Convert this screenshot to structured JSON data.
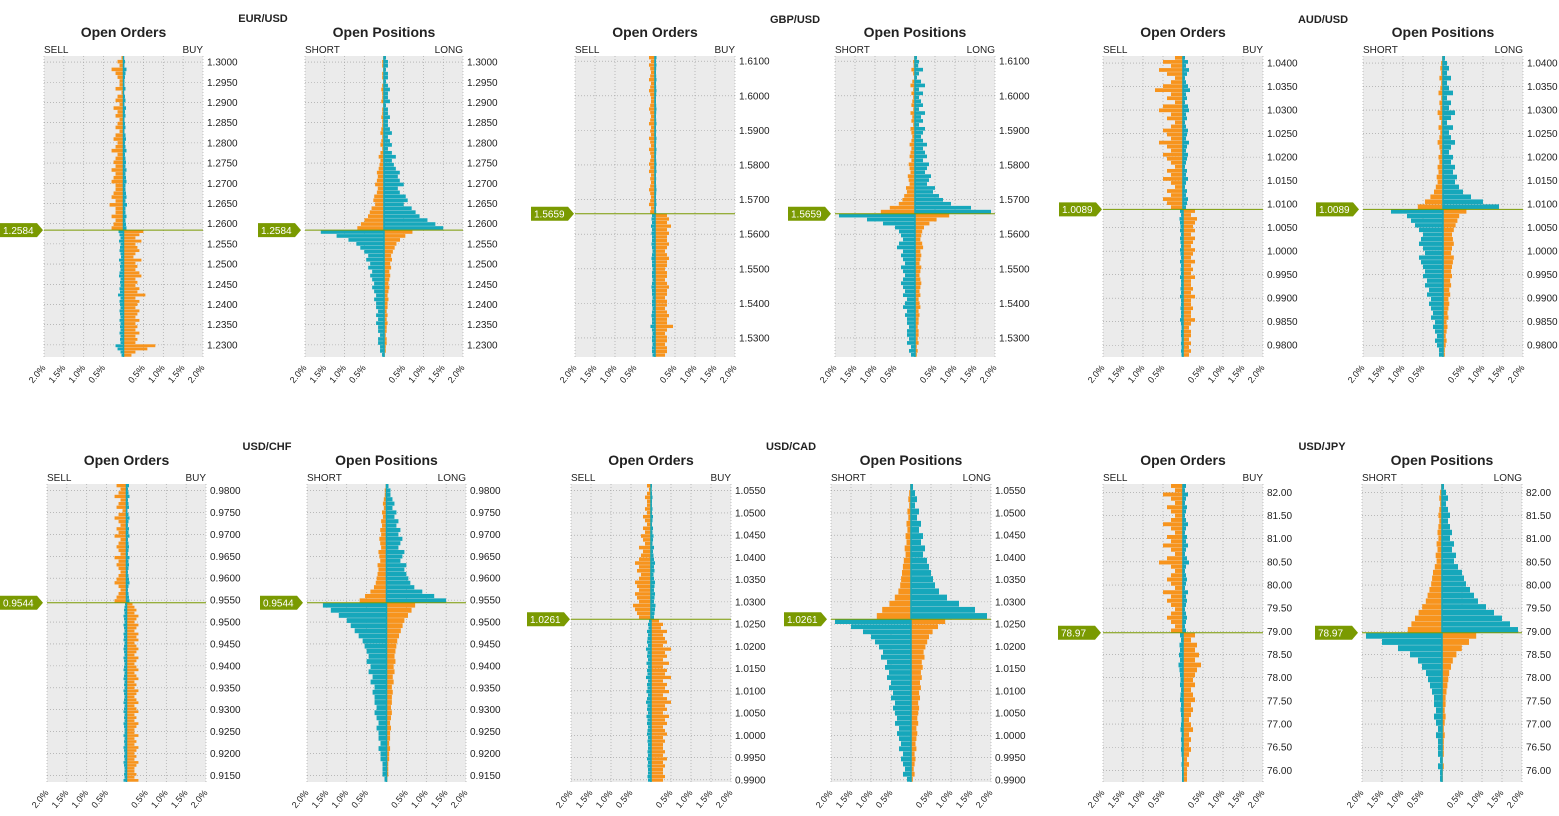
{
  "labels": {
    "orders_title": "Open Orders",
    "positions_title": "Open Positions",
    "sell": "SELL",
    "buy": "BUY",
    "short": "SHORT",
    "long": "LONG",
    "x_ticks": [
      "2.0%",
      "1.5%",
      "1.0%",
      "0.5%",
      "",
      "0.5%",
      "1.0%",
      "1.5%",
      "2.0%"
    ]
  },
  "colors": {
    "orange": "#F7941D",
    "teal": "#16A7BB",
    "price_line": "#7A9A01",
    "plot_bg": "#EBEBEB",
    "grid": "#9A9A9A"
  },
  "chart_data": [
    {
      "type": "bar",
      "pair": "EUR/USD",
      "current_price": "1.2584",
      "price_value": 1.2584,
      "y_range": [
        1.227,
        1.3015
      ],
      "y_ticks": [
        "1.3000",
        "1.2950",
        "1.2900",
        "1.2850",
        "1.2800",
        "1.2750",
        "1.2700",
        "1.2650",
        "1.2600",
        "1.2550",
        "1.2500",
        "1.2450",
        "1.2400",
        "1.2350",
        "1.2300"
      ],
      "orders_profile": {
        "above": [
          0.05,
          0.15,
          0.1,
          0.3,
          0.2,
          0.15,
          0.1,
          0.1,
          0.2,
          0.05,
          0.15,
          0.2,
          0.1,
          0.25,
          0.15,
          0.2,
          0.1,
          0.15,
          0.2,
          0.1,
          0.2,
          0.25,
          0.15,
          0.2,
          0.3,
          0.15,
          0.2,
          0.25,
          0.2,
          0.3,
          0.2,
          0.25,
          0.3,
          0.2,
          0.2,
          0.25,
          0.3,
          0.2,
          0.35,
          0.2,
          0.2,
          0.3,
          0.2,
          0.25,
          0.3
        ],
        "below": [
          0.5,
          0.4,
          0.3,
          0.45,
          0.3,
          0.35,
          0.4,
          0.3,
          0.25,
          0.45,
          0.3,
          0.35,
          0.3,
          0.4,
          0.45,
          0.3,
          0.35,
          0.3,
          0.4,
          0.35,
          0.55,
          0.3,
          0.4,
          0.35,
          0.3,
          0.4,
          0.35,
          0.3,
          0.4,
          0.3,
          0.35,
          0.3,
          0.4,
          0.3,
          0.35,
          0.3,
          0.8,
          0.6,
          0.3,
          0.2
        ],
        "max": 0.9
      },
      "positions_profile": {
        "above": [
          0.05,
          0.1,
          0.1,
          0.05,
          0.1,
          0.1,
          0.05,
          0.1,
          0.15,
          0.1,
          0.1,
          0.15,
          0.05,
          0.1,
          0.1,
          0.15,
          0.1,
          0.1,
          0.15,
          0.2,
          0.1,
          0.15,
          0.2,
          0.1,
          0.2,
          0.3,
          0.2,
          0.25,
          0.3,
          0.4,
          0.35,
          0.4,
          0.5,
          0.35,
          0.4,
          0.55,
          0.6,
          0.5,
          0.7,
          0.8,
          0.9,
          1.1,
          1.3,
          1.5
        ],
        "below": [
          1.6,
          1.2,
          0.9,
          0.7,
          0.6,
          0.5,
          0.4,
          0.45,
          0.35,
          0.4,
          0.3,
          0.35,
          0.3,
          0.25,
          0.3,
          0.25,
          0.2,
          0.25,
          0.2,
          0.2,
          0.15,
          0.2,
          0.15,
          0.2,
          0.15,
          0.15,
          0.1,
          0.15,
          0.15,
          0.1,
          0.1,
          0.05
        ],
        "max": 1.8
      }
    },
    {
      "type": "bar",
      "pair": "GBP/USD",
      "current_price": "1.5659",
      "price_value": 1.5659,
      "y_range": [
        1.5245,
        1.6115
      ],
      "y_ticks": [
        "1.6100",
        "1.6000",
        "1.5900",
        "1.5800",
        "1.5700",
        "1.5600",
        "1.5500",
        "1.5400",
        "1.5300"
      ],
      "orders_profile": {
        "above": [
          0.15,
          0.1,
          0.15,
          0.12,
          0.1,
          0.12,
          0.15,
          0.1,
          0.12,
          0.15,
          0.12,
          0.1,
          0.1,
          0.12,
          0.15,
          0.12,
          0.1,
          0.12,
          0.15,
          0.1,
          0.12,
          0.1,
          0.15,
          0.12,
          0.1,
          0.15,
          0.12,
          0.1,
          0.12,
          0.15,
          0.12,
          0.15,
          0.1,
          0.12,
          0.1,
          0.12,
          0.15,
          0.12,
          0.1,
          0.12,
          0.15,
          0.1,
          0.12
        ],
        "below": [
          0.3,
          0.35,
          0.3,
          0.4,
          0.3,
          0.35,
          0.3,
          0.3,
          0.35,
          0.3,
          0.25,
          0.3,
          0.35,
          0.3,
          0.3,
          0.25,
          0.3,
          0.3,
          0.25,
          0.3,
          0.35,
          0.3,
          0.3,
          0.25,
          0.3,
          0.3,
          0.25,
          0.3,
          0.35,
          0.3,
          0.3,
          0.45,
          0.3,
          0.25,
          0.3,
          0.3,
          0.25,
          0.3,
          0.3,
          0.25
        ],
        "max": 0.5
      },
      "positions_profile": {
        "above": [
          0.05,
          0.1,
          0.08,
          0.2,
          0.1,
          0.05,
          0.15,
          0.25,
          0.1,
          0.2,
          0.1,
          0.15,
          0.2,
          0.1,
          0.25,
          0.15,
          0.2,
          0.1,
          0.25,
          0.2,
          0.15,
          0.2,
          0.3,
          0.2,
          0.25,
          0.3,
          0.2,
          0.35,
          0.3,
          0.25,
          0.4,
          0.35,
          0.3,
          0.5,
          0.45,
          0.6,
          0.7,
          0.9,
          1.4,
          1.9
        ],
        "below": [
          1.9,
          1.2,
          0.8,
          0.5,
          0.4,
          0.35,
          0.3,
          0.4,
          0.45,
          0.3,
          0.35,
          0.3,
          0.25,
          0.35,
          0.3,
          0.25,
          0.3,
          0.35,
          0.3,
          0.25,
          0.3,
          0.2,
          0.25,
          0.3,
          0.2,
          0.25,
          0.2,
          0.2,
          0.15,
          0.2,
          0.2,
          0.15,
          0.2,
          0.1,
          0.15,
          0.1
        ],
        "max": 2.0
      }
    },
    {
      "type": "bar",
      "pair": "AUD/USD",
      "current_price": "1.0089",
      "price_value": 1.0089,
      "y_range": [
        0.9775,
        1.0415
      ],
      "y_ticks": [
        "1.0400",
        "1.0350",
        "1.0300",
        "1.0250",
        "1.0200",
        "1.0150",
        "1.0100",
        "1.0050",
        "1.0000",
        "0.9950",
        "0.9900",
        "0.9850",
        "0.9800"
      ],
      "orders_profile": {
        "above": [
          0.2,
          0.5,
          0.3,
          0.6,
          0.4,
          0.2,
          0.3,
          0.5,
          0.7,
          0.3,
          0.4,
          0.2,
          0.5,
          0.6,
          0.3,
          0.4,
          0.2,
          0.3,
          0.5,
          0.4,
          0.3,
          0.6,
          0.4,
          0.3,
          0.5,
          0.4,
          0.3,
          0.2,
          0.4,
          0.3,
          0.5,
          0.3,
          0.2,
          0.4,
          0.3,
          0.5,
          0.4,
          0.3
        ],
        "below": [
          0.3,
          0.2,
          0.35,
          0.3,
          0.25,
          0.3,
          0.2,
          0.3,
          0.25,
          0.2,
          0.3,
          0.25,
          0.2,
          0.3,
          0.2,
          0.25,
          0.2,
          0.3,
          0.2,
          0.2,
          0.25,
          0.2,
          0.3,
          0.2,
          0.2,
          0.25,
          0.2,
          0.2,
          0.3,
          0.2,
          0.15,
          0.2,
          0.2,
          0.15,
          0.2,
          0.15,
          0.2,
          0.15
        ],
        "max": 0.9
      },
      "positions_profile": {
        "above": [
          0.05,
          0.1,
          0.15,
          0.1,
          0.2,
          0.1,
          0.15,
          0.25,
          0.1,
          0.2,
          0.15,
          0.3,
          0.2,
          0.1,
          0.25,
          0.15,
          0.2,
          0.3,
          0.2,
          0.15,
          0.25,
          0.2,
          0.3,
          0.25,
          0.35,
          0.3,
          0.4,
          0.5,
          0.7,
          1.0,
          1.4
        ],
        "below": [
          1.3,
          0.9,
          0.8,
          0.7,
          0.6,
          0.5,
          0.55,
          0.6,
          0.5,
          0.45,
          0.6,
          0.55,
          0.5,
          0.45,
          0.5,
          0.4,
          0.45,
          0.35,
          0.4,
          0.3,
          0.35,
          0.3,
          0.25,
          0.3,
          0.2,
          0.25,
          0.2,
          0.15,
          0.2,
          0.15,
          0.1,
          0.1
        ],
        "max": 1.8
      }
    },
    {
      "type": "bar",
      "pair": "USD/CHF",
      "current_price": "0.9544",
      "price_value": 0.9544,
      "y_range": [
        0.9135,
        0.9815
      ],
      "y_ticks": [
        "0.9800",
        "0.9750",
        "0.9700",
        "0.9650",
        "0.9600",
        "0.9550",
        "0.9500",
        "0.9450",
        "0.9400",
        "0.9350",
        "0.9300",
        "0.9250",
        "0.9200",
        "0.9150"
      ],
      "orders_profile": {
        "above": [
          0.25,
          0.15,
          0.2,
          0.3,
          0.15,
          0.2,
          0.25,
          0.1,
          0.2,
          0.3,
          0.2,
          0.15,
          0.25,
          0.2,
          0.3,
          0.15,
          0.2,
          0.25,
          0.2,
          0.15,
          0.3,
          0.2,
          0.25,
          0.2,
          0.15,
          0.2,
          0.25,
          0.3,
          0.2,
          0.15,
          0.2,
          0.25,
          0.3
        ],
        "below": [
          0.15,
          0.2,
          0.25,
          0.2,
          0.3,
          0.25,
          0.2,
          0.3,
          0.25,
          0.2,
          0.3,
          0.25,
          0.3,
          0.2,
          0.25,
          0.3,
          0.25,
          0.2,
          0.3,
          0.25,
          0.2,
          0.25,
          0.3,
          0.2,
          0.25,
          0.3,
          0.2,
          0.25,
          0.2,
          0.3,
          0.25,
          0.2,
          0.25,
          0.3,
          0.2,
          0.25,
          0.3,
          0.2,
          0.25,
          0.2,
          0.3,
          0.25,
          0.2,
          0.2,
          0.3,
          0.2,
          0.25,
          0.2,
          0.3,
          0.25,
          0.2,
          0.25,
          0.2,
          0.3,
          0.25,
          0.2,
          0.2,
          0.25,
          0.2,
          0.3
        ],
        "max": 0.5
      },
      "positions_profile": {
        "above": [
          0.05,
          0.1,
          0.1,
          0.15,
          0.2,
          0.15,
          0.25,
          0.2,
          0.3,
          0.25,
          0.35,
          0.3,
          0.4,
          0.35,
          0.3,
          0.45,
          0.4,
          0.35,
          0.5,
          0.45,
          0.5,
          0.55,
          0.6,
          0.7,
          0.9,
          1.2,
          1.5
        ],
        "below": [
          1.6,
          1.4,
          1.2,
          1.0,
          0.9,
          0.8,
          0.7,
          0.6,
          0.55,
          0.5,
          0.45,
          0.5,
          0.4,
          0.45,
          0.35,
          0.4,
          0.3,
          0.35,
          0.3,
          0.3,
          0.25,
          0.3,
          0.25,
          0.2,
          0.25,
          0.2,
          0.2,
          0.15,
          0.2,
          0.15,
          0.15,
          0.1,
          0.1,
          0.1,
          0.05
        ],
        "max": 1.8
      }
    },
    {
      "type": "bar",
      "pair": "USD/CAD",
      "current_price": "1.0261",
      "price_value": 1.0261,
      "y_range": [
        0.9895,
        1.0565
      ],
      "y_ticks": [
        "1.0550",
        "1.0500",
        "1.0450",
        "1.0400",
        "1.0350",
        "1.0300",
        "1.0250",
        "1.0200",
        "1.0150",
        "1.0100",
        "1.0050",
        "1.0000",
        "0.9950",
        "0.9900"
      ],
      "orders_profile": {
        "above": [
          0.1,
          0.05,
          0.1,
          0.15,
          0.1,
          0.1,
          0.15,
          0.1,
          0.2,
          0.15,
          0.1,
          0.2,
          0.15,
          0.25,
          0.2,
          0.15,
          0.3,
          0.2,
          0.25,
          0.3,
          0.4,
          0.3,
          0.35,
          0.25,
          0.3,
          0.4,
          0.35,
          0.3,
          0.4,
          0.35,
          0.3,
          0.45,
          0.4,
          0.35,
          0.3
        ],
        "below": [
          0.2,
          0.3,
          0.25,
          0.4,
          0.3,
          0.35,
          0.4,
          0.3,
          0.5,
          0.35,
          0.4,
          0.3,
          0.45,
          0.3,
          0.4,
          0.35,
          0.5,
          0.3,
          0.4,
          0.35,
          0.45,
          0.3,
          0.4,
          0.5,
          0.35,
          0.4,
          0.3,
          0.45,
          0.35,
          0.4,
          0.3,
          0.35,
          0.4,
          0.3,
          0.35,
          0.3,
          0.3,
          0.35,
          0.3,
          0.4,
          0.3,
          0.35,
          0.3,
          0.3,
          0.35,
          0.3
        ],
        "max": 0.8
      },
      "positions_profile": {
        "above": [
          0.05,
          0.1,
          0.15,
          0.1,
          0.2,
          0.15,
          0.25,
          0.2,
          0.3,
          0.25,
          0.35,
          0.3,
          0.4,
          0.45,
          0.5,
          0.55,
          0.6,
          0.7,
          0.9,
          1.2,
          1.6,
          1.9
        ],
        "below": [
          1.9,
          1.5,
          1.2,
          1.0,
          0.9,
          0.8,
          0.7,
          0.75,
          0.6,
          0.65,
          0.55,
          0.6,
          0.5,
          0.55,
          0.45,
          0.5,
          0.4,
          0.45,
          0.4,
          0.35,
          0.4,
          0.3,
          0.35,
          0.3,
          0.25,
          0.3,
          0.2,
          0.25,
          0.2,
          0.15,
          0.2,
          0.1
        ],
        "max": 2.0
      }
    },
    {
      "type": "bar",
      "pair": "USD/JPY",
      "current_price": "78.97",
      "price_value": 78.97,
      "y_range": [
        75.75,
        82.18
      ],
      "y_ticks": [
        "82.00",
        "81.50",
        "81.00",
        "80.50",
        "80.00",
        "79.50",
        "79.00",
        "78.50",
        "78.00",
        "77.50",
        "77.00",
        "76.50",
        "76.00"
      ],
      "orders_profile": {
        "above": [
          0.3,
          0.2,
          0.5,
          0.3,
          0.2,
          0.4,
          0.3,
          0.2,
          0.3,
          0.5,
          0.3,
          0.2,
          0.4,
          0.3,
          0.5,
          0.3,
          0.2,
          0.4,
          0.6,
          0.3,
          0.2,
          0.3,
          0.4,
          0.3,
          0.2,
          0.5,
          0.3,
          0.4,
          0.3,
          0.2,
          0.3,
          0.4,
          0.3,
          0.2,
          0.3
        ],
        "below": [
          0.3,
          0.2,
          0.35,
          0.3,
          0.4,
          0.3,
          0.45,
          0.35,
          0.3,
          0.25,
          0.3,
          0.2,
          0.25,
          0.3,
          0.2,
          0.25,
          0.2,
          0.15,
          0.2,
          0.25,
          0.15,
          0.2,
          0.15,
          0.2,
          0.15,
          0.1,
          0.15,
          0.1,
          0.1,
          0.1
        ],
        "max": 0.9
      },
      "positions_profile": {
        "above": [
          0.05,
          0.1,
          0.15,
          0.1,
          0.15,
          0.2,
          0.15,
          0.2,
          0.25,
          0.2,
          0.3,
          0.25,
          0.35,
          0.3,
          0.4,
          0.5,
          0.55,
          0.6,
          0.7,
          0.8,
          0.9,
          1.1,
          1.3,
          1.5,
          1.7,
          1.9
        ],
        "below": [
          1.9,
          1.5,
          1.1,
          0.8,
          0.6,
          0.5,
          0.4,
          0.35,
          0.3,
          0.25,
          0.2,
          0.2,
          0.15,
          0.2,
          0.15,
          0.1,
          0.15,
          0.1,
          0.1,
          0.1,
          0.05,
          0.1,
          0.05,
          0.05
        ],
        "max": 2.0
      }
    }
  ]
}
